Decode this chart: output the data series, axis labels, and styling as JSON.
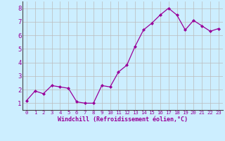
{
  "x": [
    0,
    1,
    2,
    3,
    4,
    5,
    6,
    7,
    8,
    9,
    10,
    11,
    12,
    13,
    14,
    15,
    16,
    17,
    18,
    19,
    20,
    21,
    22,
    23
  ],
  "y": [
    1.2,
    1.9,
    1.7,
    2.3,
    2.2,
    2.1,
    1.1,
    1.0,
    1.0,
    2.3,
    2.2,
    3.3,
    3.8,
    5.2,
    6.4,
    6.9,
    7.5,
    8.0,
    7.5,
    6.4,
    7.1,
    6.7,
    6.3,
    6.5
  ],
  "line_color": "#990099",
  "marker": "D",
  "marker_size": 2.0,
  "bg_color": "#cceeff",
  "grid_color": "#bbbbbb",
  "xlabel": "Windchill (Refroidissement éolien,°C)",
  "xlabel_color": "#990099",
  "ylabel_ticks": [
    1,
    2,
    3,
    4,
    5,
    6,
    7,
    8
  ],
  "xtick_labels": [
    "0",
    "1",
    "2",
    "3",
    "4",
    "5",
    "6",
    "7",
    "8",
    "9",
    "10",
    "11",
    "12",
    "13",
    "14",
    "15",
    "16",
    "17",
    "18",
    "19",
    "20",
    "21",
    "22",
    "23"
  ],
  "ylim": [
    0.5,
    8.5
  ],
  "xlim": [
    -0.5,
    23.5
  ],
  "tick_color": "#990099",
  "ytick_labelsize": 6.5,
  "xtick_labelsize": 5.2,
  "xlabel_fontsize": 6.0,
  "linewidth": 0.9,
  "spine_color": "#444444"
}
